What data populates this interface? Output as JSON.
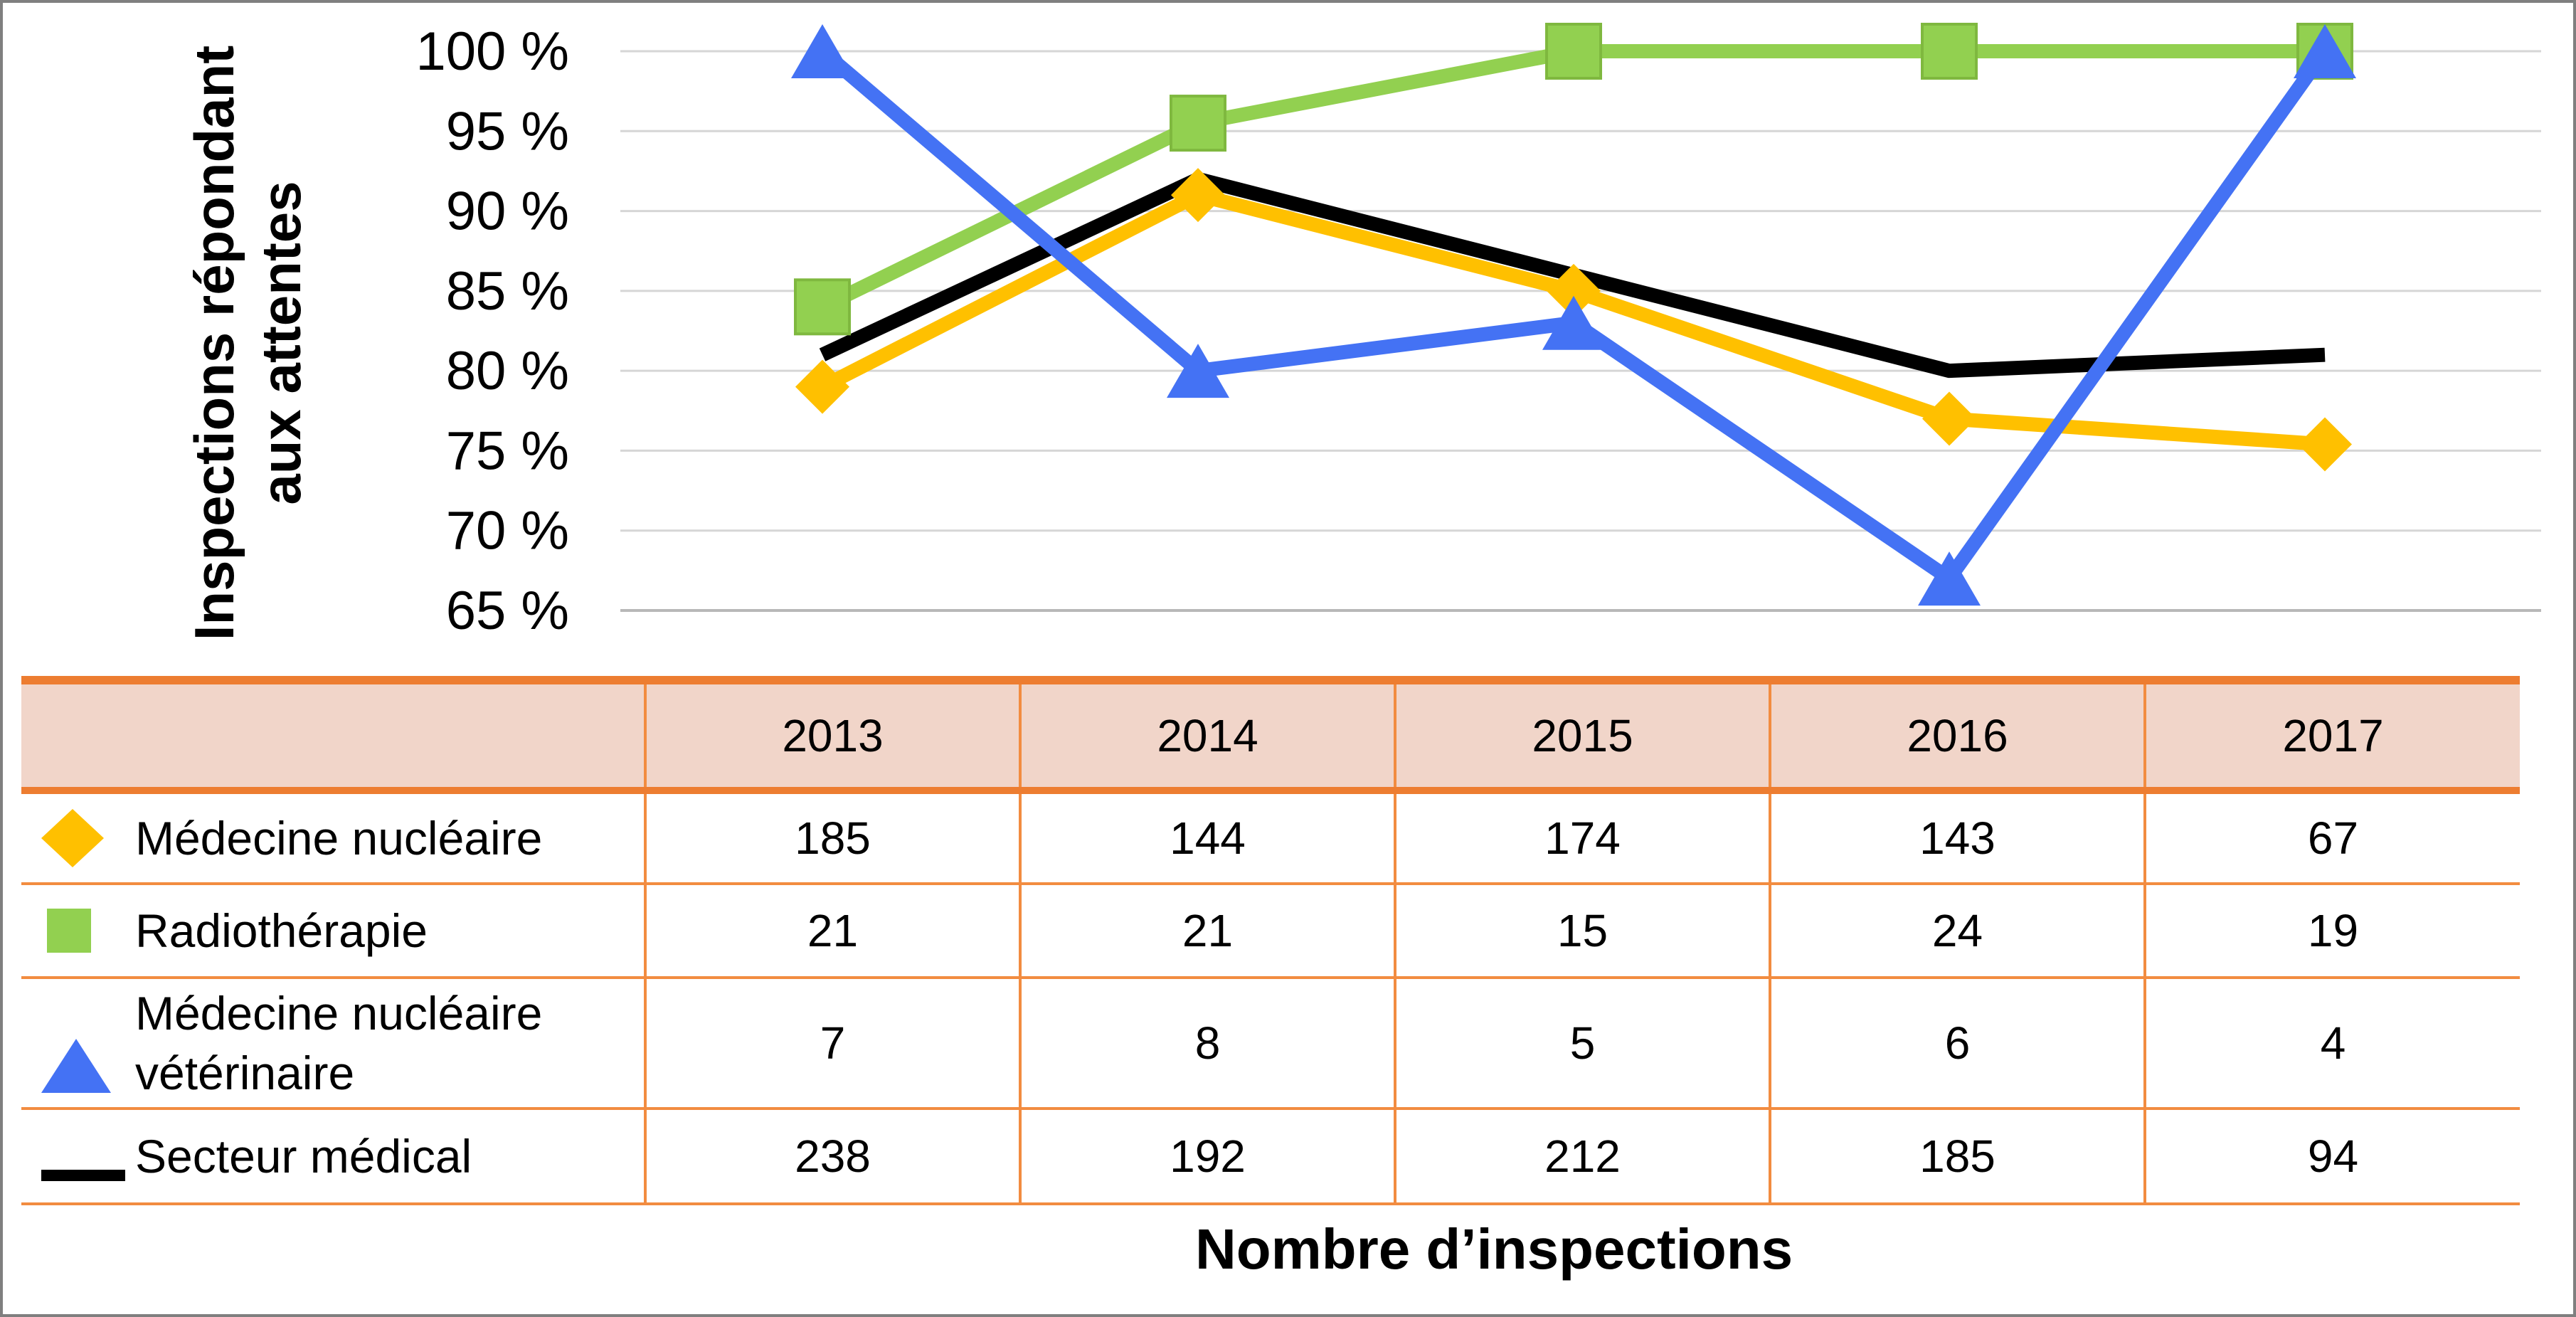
{
  "chart_data": {
    "type": "line",
    "title": "",
    "ylabel": "Inspections répondant aux attentes",
    "xlabel": "Nombre d’inspections",
    "ylim": [
      65,
      100
    ],
    "y_ticks": [
      "65 %",
      "70 %",
      "75 %",
      "80 %",
      "85 %",
      "90 %",
      "95 %",
      "100 %"
    ],
    "y_tick_values": [
      65,
      70,
      75,
      80,
      85,
      90,
      95,
      100
    ],
    "grid": true,
    "categories": [
      "2013",
      "2014",
      "2015",
      "2016",
      "2017"
    ],
    "series": [
      {
        "name": "Médecine nucléaire",
        "color": "#ffc000",
        "marker": "diamond",
        "values": [
          79,
          91,
          85,
          77,
          75.4
        ],
        "inspections": [
          "185",
          "144",
          "174",
          "143",
          "67"
        ]
      },
      {
        "name": "Radiothérapie",
        "color": "#92d050",
        "marker": "square",
        "values": [
          84,
          95.5,
          100,
          100,
          100
        ],
        "inspections": [
          "21",
          "21",
          "15",
          "24",
          "19"
        ]
      },
      {
        "name": "Médecine nucléaire vétérinaire",
        "color": "#4472f4",
        "marker": "triangle",
        "values": [
          100,
          80,
          83,
          67,
          100
        ],
        "inspections": [
          "7",
          "8",
          "5",
          "6",
          "4"
        ]
      },
      {
        "name": "Secteur médical",
        "color": "#000000",
        "marker": "none",
        "values": [
          81,
          92,
          86,
          80,
          81
        ],
        "inspections": [
          "238",
          "192",
          "212",
          "185",
          "94"
        ]
      }
    ]
  }
}
